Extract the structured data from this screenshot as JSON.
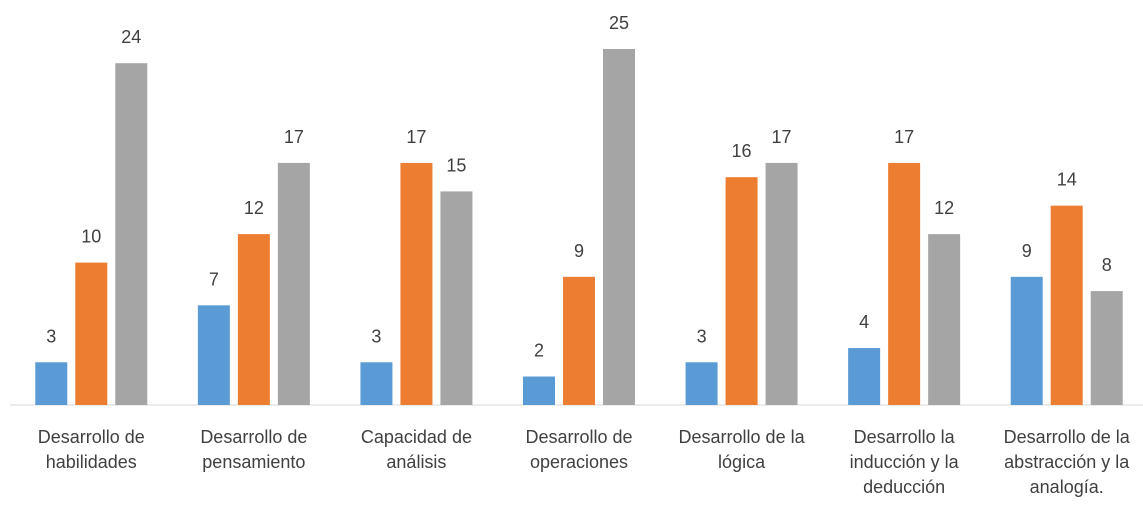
{
  "chart_data": {
    "type": "bar",
    "categories": [
      "Desarrollo de habilidades",
      "Desarrollo de pensamiento",
      "Capacidad de análisis",
      "Desarrollo de operaciones",
      "Desarrollo de la lógica",
      "Desarrollo la inducción y la deducción",
      "Desarrollo de la abstracción y la analogía."
    ],
    "series": [
      {
        "color": "#5b9bd5",
        "values": [
          3,
          7,
          3,
          2,
          3,
          4,
          9
        ]
      },
      {
        "color": "#ed7d31",
        "values": [
          10,
          12,
          17,
          9,
          16,
          17,
          14
        ]
      },
      {
        "color": "#a5a5a5",
        "values": [
          24,
          17,
          15,
          25,
          17,
          12,
          8
        ]
      }
    ],
    "ylim": [
      0,
      25
    ]
  }
}
